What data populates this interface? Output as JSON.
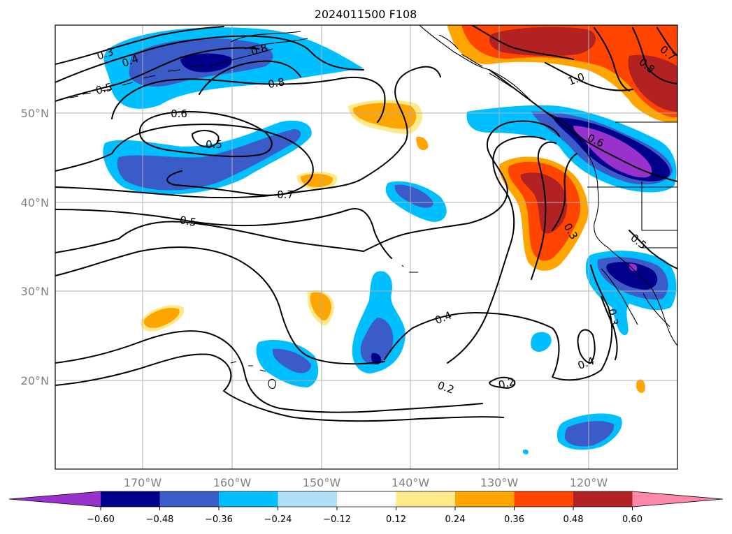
{
  "title": "2024011500 F108",
  "map": {
    "lon_labels": [
      "170°W",
      "160°W",
      "150°W",
      "140°W",
      "130°W",
      "120°W"
    ],
    "lat_labels": [
      "50°N",
      "40°N",
      "30°N",
      "20°N"
    ]
  },
  "contour_labels": [
    "0.3",
    "0.4",
    "0.5",
    "0.6",
    "0.8",
    "0.5",
    "0.8",
    "0.7",
    "0.5",
    "0.4",
    "0.2",
    "0.2",
    "0.4",
    "0.3",
    "0.6",
    "1.0",
    "0.8",
    "0.7",
    "0.3",
    "0.5"
  ],
  "colorbar": {
    "tick_labels": [
      "−0.60",
      "−0.48",
      "−0.36",
      "−0.24",
      "−0.12",
      "0.12",
      "0.24",
      "0.36",
      "0.48",
      "0.60"
    ],
    "colors": [
      "#9932cc",
      "#00008b",
      "#3a5bc8",
      "#00bfff",
      "#b0e0f8",
      "#ffffff",
      "#ffe98a",
      "#ffa500",
      "#ff4500",
      "#b22222",
      "#ff88aa"
    ]
  }
}
